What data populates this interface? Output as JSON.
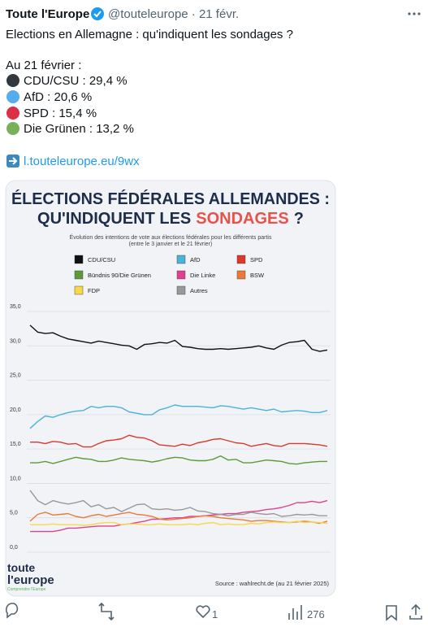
{
  "tweet": {
    "author": "Toute l'Europe",
    "handle_date": "@touteleurope · 21 févr.",
    "lines": [
      "Elections en Allemagne : qu'indiquent les sondages ?",
      "Au 21 février :"
    ],
    "bullets": [
      "CDU/CSU : 29,4 %",
      "AfD : 20,6 %",
      "SPD : 15,4 %",
      "Die Grünen : 13,2 %"
    ],
    "link": "l.touteleurope.eu/9wx",
    "likes": "1",
    "views": "276"
  },
  "chart_data": {
    "type": "line",
    "title": [
      "ÉLECTIONS FÉDÉRALES ALLEMANDES :",
      "QU'INDIQUENT LES",
      "SONDAGES",
      "?"
    ],
    "subtitle": [
      "Évolution des intentions de vote aux élections fédérales pour les différents partis",
      "(entre le 3 janvier et le 21 février)"
    ],
    "source": "Source : wahlrecht.de (au 21 février 2025)",
    "logo": [
      "toute",
      "l'europe",
      "Comprendre l'Europe"
    ],
    "ylim": [
      0,
      35
    ],
    "yticks": [
      {
        "value": 0,
        "label": "0,0"
      },
      {
        "value": 5,
        "label": "5,0"
      },
      {
        "value": 10,
        "label": "10,0"
      },
      {
        "value": 15,
        "label": "15,0"
      },
      {
        "value": 20,
        "label": "20,0"
      },
      {
        "value": 25,
        "label": "25,0"
      },
      {
        "value": 30,
        "label": "30,0"
      },
      {
        "value": 35,
        "label": "35,0"
      }
    ],
    "grid": true,
    "series": [
      {
        "name": "CDU/CSU",
        "color": "#111111",
        "values": [
          33.0,
          32.0,
          31.8,
          31.9,
          31.4,
          31.0,
          30.8,
          30.6,
          30.4,
          30.7,
          30.5,
          30.3,
          30.1,
          30.0,
          29.5,
          30.2,
          30.3,
          30.5,
          30.4,
          30.8,
          29.9,
          29.8,
          29.6,
          29.5,
          29.5,
          29.6,
          29.5,
          29.6,
          29.7,
          29.8,
          30.0,
          29.7,
          29.5,
          30.1,
          30.5,
          30.6,
          30.8,
          29.5,
          29.2,
          29.4
        ]
      },
      {
        "name": "AfD",
        "color": "#4bb3d8",
        "values": [
          18.0,
          19.0,
          19.8,
          19.6,
          20.0,
          20.3,
          20.5,
          20.6,
          21.2,
          21.0,
          21.2,
          21.2,
          21.0,
          20.4,
          20.2,
          20.0,
          20.0,
          20.7,
          21.0,
          21.4,
          21.2,
          21.2,
          21.2,
          21.1,
          21.0,
          21.3,
          21.2,
          21.0,
          20.8,
          21.0,
          20.8,
          20.6,
          20.8,
          20.4,
          20.5,
          20.6,
          20.5,
          20.3,
          20.3,
          20.6
        ]
      },
      {
        "name": "SPD",
        "color": "#d93a2b",
        "values": [
          16.0,
          16.0,
          15.8,
          16.1,
          16.0,
          15.7,
          15.8,
          15.3,
          15.3,
          15.8,
          16.2,
          16.3,
          16.5,
          17.0,
          16.7,
          16.6,
          16.2,
          15.6,
          15.5,
          15.4,
          15.7,
          15.5,
          15.9,
          16.1,
          16.4,
          16.5,
          16.2,
          15.9,
          15.8,
          15.4,
          15.6,
          15.8,
          15.5,
          15.4,
          15.8,
          15.8,
          15.8,
          15.7,
          15.6,
          15.4
        ]
      },
      {
        "name": "Bündnis 90/Die Grünen",
        "color": "#5e9a3a",
        "values": [
          13.0,
          13.0,
          13.2,
          12.9,
          13.2,
          13.5,
          13.8,
          13.6,
          13.5,
          13.2,
          13.2,
          13.4,
          13.7,
          13.5,
          13.4,
          13.3,
          13.1,
          13.3,
          13.6,
          13.8,
          13.7,
          13.4,
          13.3,
          13.3,
          13.5,
          14.0,
          13.4,
          13.5,
          13.0,
          13.0,
          13.2,
          13.4,
          13.3,
          13.2,
          12.9,
          12.8,
          13.0,
          13.1,
          13.2,
          13.2
        ]
      },
      {
        "name": "Die Linke",
        "color": "#e0418f",
        "values": [
          3.0,
          3.0,
          3.0,
          3.0,
          3.2,
          3.5,
          3.5,
          3.6,
          3.7,
          3.8,
          3.8,
          3.8,
          4.0,
          4.1,
          4.3,
          4.5,
          4.8,
          4.8,
          4.9,
          5.0,
          5.0,
          5.2,
          5.2,
          5.3,
          5.4,
          5.5,
          5.6,
          5.6,
          5.8,
          5.9,
          6.0,
          6.2,
          6.3,
          6.5,
          6.8,
          7.2,
          7.2,
          7.4,
          7.2,
          7.5
        ]
      },
      {
        "name": "BSW",
        "color": "#e97a3a",
        "values": [
          4.5,
          5.5,
          5.8,
          5.4,
          5.5,
          5.6,
          5.2,
          5.0,
          5.3,
          5.5,
          5.2,
          5.4,
          5.6,
          5.8,
          5.5,
          5.4,
          5.2,
          4.8,
          4.7,
          4.8,
          4.9,
          5.0,
          5.2,
          5.3,
          5.2,
          5.0,
          4.9,
          4.8,
          4.7,
          4.5,
          4.6,
          4.6,
          4.5,
          4.4,
          4.3,
          4.4,
          4.5,
          4.4,
          4.2,
          4.5
        ]
      },
      {
        "name": "FDP",
        "color": "#f6d84a",
        "values": [
          4.0,
          4.0,
          4.0,
          4.1,
          4.0,
          4.0,
          4.0,
          3.9,
          4.0,
          4.2,
          4.3,
          4.3,
          4.0,
          4.1,
          4.1,
          4.0,
          4.0,
          4.1,
          4.0,
          4.0,
          4.0,
          4.1,
          4.0,
          4.2,
          4.3,
          4.0,
          4.1,
          4.0,
          4.0,
          4.2,
          4.1,
          4.3,
          4.4,
          4.3,
          4.3,
          4.5,
          4.3,
          4.4,
          4.3,
          4.2
        ]
      },
      {
        "name": "Autres",
        "color": "#999999",
        "values": [
          9.0,
          7.5,
          6.9,
          7.5,
          7.2,
          7.0,
          7.2,
          7.5,
          6.6,
          6.9,
          6.3,
          6.5,
          5.9,
          6.4,
          6.9,
          7.0,
          6.3,
          6.2,
          6.3,
          6.1,
          6.2,
          6.5,
          6.0,
          5.9,
          5.6,
          5.5,
          5.3,
          5.5,
          5.5,
          5.8,
          5.6,
          5.5,
          5.6,
          5.2,
          5.3,
          5.5,
          5.4,
          5.5,
          5.3,
          5.3
        ]
      }
    ]
  }
}
